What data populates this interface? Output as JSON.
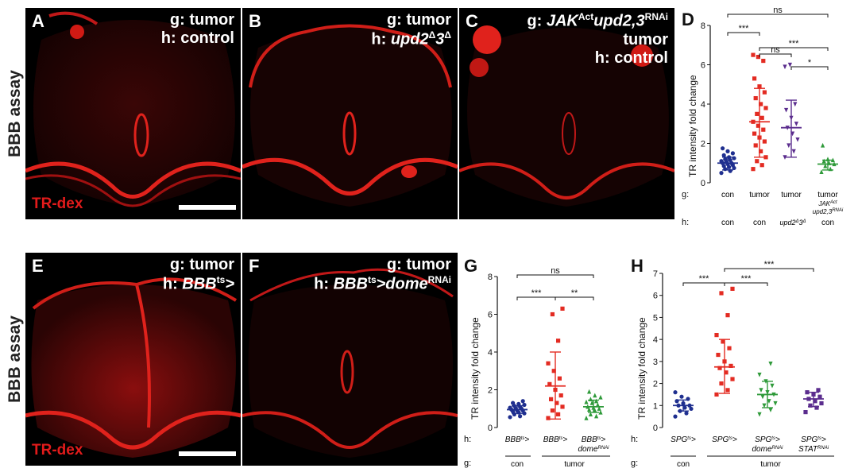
{
  "row1_label": "BBB assay",
  "row2_label": "BBB assay",
  "stain_label": "TR-dex",
  "panels": {
    "A": {
      "letter": "A",
      "line1": "g: tumor",
      "line2": "h: control"
    },
    "B": {
      "letter": "B",
      "line1": "g: tumor",
      "line2_prefix": "h: ",
      "line2_geno": "upd2",
      "line2_sup1": "Δ",
      "line2_mid": "3",
      "line2_sup2": "Δ"
    },
    "C": {
      "letter": "C",
      "line1_prefix": "g: ",
      "line1_geno": "JAK",
      "line1_sup": "Act",
      "line1_geno2": "upd2,3",
      "line1_sup2": "RNAi",
      "line2": "tumor",
      "line3": "h: control"
    },
    "E": {
      "letter": "E",
      "line1": "g: tumor",
      "line2_prefix": "h: ",
      "line2_geno": "BBB",
      "line2_sup": "ts",
      "line2_end": ">"
    },
    "F": {
      "letter": "F",
      "line1": "g: tumor",
      "line2_prefix": "h: ",
      "line2_geno": "BBB",
      "line2_sup": "ts",
      "line2_end": ">dome",
      "line2_sup2": "RNAi"
    }
  },
  "colors": {
    "con": "#1f2f8f",
    "tumor": "#e32b22",
    "upd": "#5b2d8e",
    "jak": "#2f9a3a",
    "panel_bg": "#000000",
    "stain": "#e21b1b"
  },
  "chart_data": [
    {
      "id": "D",
      "type": "scatter",
      "ylabel": "TR intensity fold change",
      "ylim": [
        0,
        8
      ],
      "yticks": [
        0,
        2,
        4,
        6,
        8
      ],
      "row_g_label": "g:",
      "row_h_label": "h:",
      "groups": [
        {
          "g": "con",
          "h": "con",
          "color": "#1f2f8f",
          "marker": "circle",
          "mean": 1.0,
          "sd_low": 0.65,
          "sd_high": 1.3,
          "values": [
            0.5,
            0.6,
            0.7,
            0.75,
            0.8,
            0.85,
            0.9,
            0.95,
            1.0,
            1.0,
            1.05,
            1.1,
            1.15,
            1.2,
            1.25,
            1.3,
            1.4,
            1.5,
            1.6,
            1.75
          ]
        },
        {
          "g": "tumor",
          "h": "con",
          "color": "#e32b22",
          "marker": "square",
          "mean": 3.1,
          "sd_low": 1.3,
          "sd_high": 4.8,
          "values": [
            0.7,
            0.9,
            1.1,
            1.3,
            1.6,
            1.9,
            2.1,
            2.3,
            2.5,
            2.7,
            2.9,
            3.1,
            3.3,
            3.5,
            3.8,
            4.0,
            4.3,
            4.6,
            4.9,
            5.3,
            6.2,
            6.4,
            6.5
          ]
        },
        {
          "g": "tumor",
          "h": "upd2Δ3Δ",
          "color": "#5b2d8e",
          "marker": "triangle-down",
          "mean": 2.8,
          "sd_low": 1.3,
          "sd_high": 4.2,
          "values": [
            1.3,
            1.6,
            1.9,
            2.2,
            2.5,
            2.8,
            3.0,
            3.3,
            3.7,
            4.0,
            6.0,
            5.9
          ]
        },
        {
          "g": "tumor JAKAct upd2,3RNAi",
          "h": "con",
          "color": "#2f9a3a",
          "marker": "triangle-up",
          "mean": 0.95,
          "sd_low": 0.65,
          "sd_high": 1.15,
          "values": [
            0.55,
            0.7,
            0.85,
            0.95,
            1.0,
            1.1,
            1.15,
            1.2,
            1.9
          ]
        }
      ],
      "significance": [
        {
          "from": 0,
          "to": 3,
          "label": "ns"
        },
        {
          "from": 0,
          "to": 1,
          "label": "***"
        },
        {
          "from": 1,
          "to": 2,
          "label": "ns"
        },
        {
          "from": 1,
          "to": 3,
          "label": "***"
        },
        {
          "from": 2,
          "to": 3,
          "label": "*"
        }
      ]
    },
    {
      "id": "G",
      "type": "scatter",
      "ylabel": "TR intensity fold change",
      "ylim": [
        0,
        8
      ],
      "yticks": [
        0,
        2,
        4,
        6,
        8
      ],
      "row_g_label": "g:",
      "row_h_label": "h:",
      "groups": [
        {
          "h": "BBBts>",
          "color": "#1f2f8f",
          "marker": "circle",
          "mean": 0.95,
          "sd_low": 0.75,
          "sd_high": 1.15,
          "values": [
            0.55,
            0.6,
            0.7,
            0.75,
            0.8,
            0.85,
            0.9,
            0.9,
            0.95,
            1.0,
            1.0,
            1.05,
            1.1,
            1.15,
            1.2,
            1.25,
            1.3,
            1.4
          ]
        },
        {
          "h": "BBBts>",
          "color": "#e32b22",
          "marker": "square",
          "mean": 2.2,
          "sd_low": 0.45,
          "sd_high": 4.0,
          "values": [
            0.5,
            0.7,
            0.9,
            1.1,
            1.3,
            1.5,
            1.7,
            2.0,
            2.3,
            2.6,
            3.0,
            3.4,
            4.6,
            6.0,
            6.3
          ]
        },
        {
          "h": "BBBts> domeRNAi",
          "color": "#2f9a3a",
          "marker": "triangle-up",
          "mean": 1.1,
          "sd_low": 0.8,
          "sd_high": 1.45,
          "values": [
            0.5,
            0.6,
            0.7,
            0.8,
            0.9,
            0.95,
            1.0,
            1.05,
            1.1,
            1.2,
            1.3,
            1.35,
            1.4,
            1.5,
            1.6,
            1.7,
            1.9
          ]
        }
      ],
      "g_groups": [
        {
          "label": "con",
          "span": [
            0,
            0
          ]
        },
        {
          "label": "tumor",
          "span": [
            1,
            2
          ]
        }
      ],
      "significance": [
        {
          "from": 0,
          "to": 2,
          "label": "ns"
        },
        {
          "from": 0,
          "to": 1,
          "label": "***"
        },
        {
          "from": 1,
          "to": 2,
          "label": "**"
        }
      ]
    },
    {
      "id": "H",
      "type": "scatter",
      "ylabel": "TR intensity fold change",
      "ylim": [
        0,
        7
      ],
      "yticks": [
        0,
        1,
        2,
        3,
        4,
        5,
        6,
        7
      ],
      "row_g_label": "g:",
      "row_h_label": "h:",
      "groups": [
        {
          "h": "SPGts>",
          "color": "#1f2f8f",
          "marker": "circle",
          "mean": 1.0,
          "sd_low": 0.75,
          "sd_high": 1.25,
          "values": [
            0.5,
            0.65,
            0.75,
            0.85,
            0.9,
            1.0,
            1.0,
            1.1,
            1.2,
            1.3,
            1.4,
            1.6
          ]
        },
        {
          "h": "SPGts>",
          "color": "#e32b22",
          "marker": "square",
          "mean": 2.75,
          "sd_low": 1.55,
          "sd_high": 4.0,
          "values": [
            1.5,
            1.7,
            2.0,
            2.2,
            2.5,
            2.7,
            2.8,
            3.0,
            3.3,
            3.6,
            3.9,
            4.2,
            5.1,
            6.1,
            6.3
          ]
        },
        {
          "h": "SPGts> domeRNAi",
          "color": "#2f9a3a",
          "marker": "triangle-down",
          "mean": 1.5,
          "sd_low": 0.9,
          "sd_high": 2.1,
          "values": [
            0.6,
            0.8,
            1.0,
            1.1,
            1.2,
            1.4,
            1.5,
            1.6,
            1.7,
            1.9,
            2.1,
            2.4,
            2.9
          ]
        },
        {
          "h": "SPGts> STATRNAi",
          "color": "#5b2d8e",
          "marker": "square",
          "mean": 1.3,
          "sd_low": 0.95,
          "sd_high": 1.6,
          "values": [
            0.7,
            0.9,
            1.0,
            1.1,
            1.2,
            1.3,
            1.4,
            1.5,
            1.6,
            1.7
          ]
        }
      ],
      "g_groups": [
        {
          "label": "con",
          "span": [
            0,
            0
          ]
        },
        {
          "label": "tumor",
          "span": [
            1,
            3
          ]
        }
      ],
      "significance": [
        {
          "from": 1,
          "to": 3,
          "label": "***"
        },
        {
          "from": 0,
          "to": 1,
          "label": "***"
        },
        {
          "from": 1,
          "to": 2,
          "label": "***"
        }
      ]
    }
  ]
}
